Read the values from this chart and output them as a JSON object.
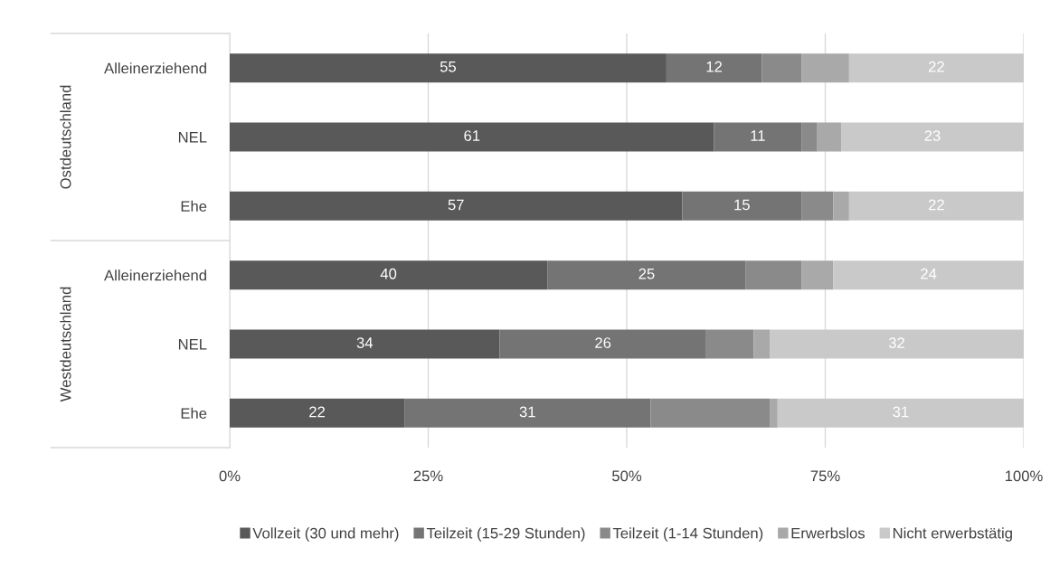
{
  "chart_data": {
    "type": "bar",
    "orientation": "horizontal",
    "stacked": true,
    "categories": [
      "Alleinerziehend",
      "NEL",
      "Ehe",
      "Alleinerziehend",
      "NEL",
      "Ehe"
    ],
    "series": [
      {
        "name": "Vollzeit (30 und mehr)",
        "color": "#595959",
        "values": [
          55,
          61,
          57,
          40,
          34,
          22
        ],
        "value_labels": [
          "55",
          "61",
          "57",
          "40",
          "34",
          "22"
        ]
      },
      {
        "name": "Teilzeit (15-29 Stunden)",
        "color": "#747474",
        "values": [
          12,
          11,
          15,
          25,
          26,
          31
        ],
        "value_labels": [
          "12",
          "11",
          "15",
          "25",
          "26",
          "31"
        ]
      },
      {
        "name": "Teilzeit (1-14 Stunden)",
        "color": "#8a8a8a",
        "values": [
          5,
          2,
          4,
          7,
          6,
          15
        ],
        "value_labels": [
          null,
          null,
          null,
          null,
          null,
          null
        ]
      },
      {
        "name": "Erwerbslos",
        "color": "#a9a9a9",
        "values": [
          6,
          3,
          2,
          4,
          2,
          1
        ],
        "value_labels": [
          null,
          null,
          null,
          null,
          null,
          null
        ]
      },
      {
        "name": "Nicht erwerbstätig",
        "color": "#c9c9c9",
        "values": [
          22,
          23,
          22,
          24,
          32,
          31
        ],
        "value_labels": [
          "22",
          "23",
          "22",
          "24",
          "32",
          "31"
        ]
      }
    ],
    "xlim": [
      0,
      100
    ],
    "xticks": [
      {
        "value": 0,
        "label": "0%"
      },
      {
        "value": 25,
        "label": "25%"
      },
      {
        "value": 50,
        "label": "50%"
      },
      {
        "value": 75,
        "label": "75%"
      },
      {
        "value": 100,
        "label": "100%"
      }
    ],
    "annotations": [
      "Ostdeutschland",
      "Westdeutschland"
    ],
    "grid": "x",
    "legend": "bottom"
  }
}
